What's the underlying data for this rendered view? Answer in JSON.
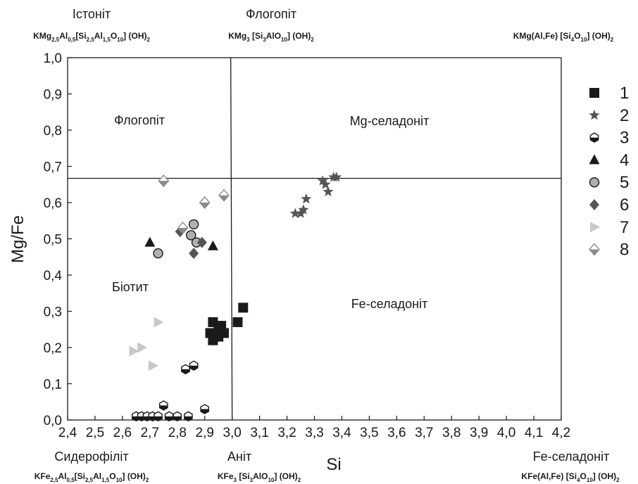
{
  "chart_data": {
    "type": "scatter",
    "xlabel": "Si",
    "ylabel": "Mg/Fe",
    "xlim": [
      2.4,
      4.2
    ],
    "ylim": [
      0.0,
      1.0
    ],
    "x_ticks": [
      "2,4",
      "2,5",
      "2,6",
      "2,7",
      "2,8",
      "2,9",
      "3,0",
      "3,1",
      "3,2",
      "3,3",
      "3,4",
      "3,5",
      "3,6",
      "3,7",
      "3,8",
      "3,9",
      "4,0",
      "4,1",
      "4,2"
    ],
    "y_ticks": [
      "0,0",
      "0,1",
      "0,2",
      "0,3",
      "0,4",
      "0,5",
      "0,6",
      "0,7",
      "0,8",
      "0,9",
      "1,0"
    ],
    "divider_lines": {
      "vertical_si": 3.0,
      "horizontal_mgfe": 0.667
    },
    "region_labels": {
      "top_left": "Флогопіт",
      "top_right": "Mg-селадоніт",
      "bottom_left": "Біотит",
      "bottom_right": "Fe-селадоніт"
    },
    "end_members": {
      "top_left": {
        "name": "Істоніт",
        "formula": "KMg2,5Al0,5[Si2,5Al1,5O10](OH)2"
      },
      "top_center": {
        "name": "Флогопіт",
        "formula": "KMg3[Si3AlO10](OH)2"
      },
      "top_right": {
        "name": "",
        "formula": "KMg(Al,Fe)[Si4O10](OH)2"
      },
      "bottom_left": {
        "name": "Сидерофіліт",
        "formula": "KFe2,5Al0,5[Si2,5Al1,5O10](OH)2"
      },
      "bottom_center": {
        "name": "Аніт",
        "formula": "KFe3[Si3AlO10](OH)2"
      },
      "bottom_right": {
        "name": "Fe-селадоніт",
        "formula": "KFe(Al,Fe)[Si4O10](OH)2"
      }
    },
    "legend_placement": "right",
    "series": [
      {
        "name": "1",
        "marker": "square",
        "color": "#1a1a1a",
        "points": [
          [
            2.93,
            0.27
          ],
          [
            2.95,
            0.25
          ],
          [
            2.96,
            0.26
          ],
          [
            2.92,
            0.24
          ],
          [
            2.93,
            0.22
          ],
          [
            2.97,
            0.24
          ],
          [
            2.95,
            0.23
          ],
          [
            3.02,
            0.27
          ],
          [
            3.04,
            0.31
          ]
        ]
      },
      {
        "name": "2",
        "marker": "star",
        "color": "#555555",
        "points": [
          [
            3.23,
            0.57
          ],
          [
            3.25,
            0.57
          ],
          [
            3.26,
            0.58
          ],
          [
            3.27,
            0.61
          ],
          [
            3.33,
            0.66
          ],
          [
            3.34,
            0.65
          ],
          [
            3.35,
            0.63
          ],
          [
            3.37,
            0.67
          ],
          [
            3.38,
            0.67
          ]
        ]
      },
      {
        "name": "3",
        "marker": "half-hexagon",
        "color": "#1a1a1a",
        "points": [
          [
            2.65,
            0.01
          ],
          [
            2.67,
            0.01
          ],
          [
            2.69,
            0.01
          ],
          [
            2.71,
            0.01
          ],
          [
            2.73,
            0.01
          ],
          [
            2.75,
            0.04
          ],
          [
            2.77,
            0.01
          ],
          [
            2.8,
            0.01
          ],
          [
            2.84,
            0.01
          ],
          [
            2.83,
            0.14
          ],
          [
            2.86,
            0.15
          ],
          [
            2.9,
            0.03
          ]
        ]
      },
      {
        "name": "4",
        "marker": "triangle-up",
        "color": "#1a1a1a",
        "points": [
          [
            2.7,
            0.49
          ],
          [
            2.93,
            0.48
          ]
        ]
      },
      {
        "name": "5",
        "marker": "circle",
        "color": "#b0b0b0",
        "points": [
          [
            2.73,
            0.46
          ],
          [
            2.86,
            0.54
          ],
          [
            2.85,
            0.51
          ],
          [
            2.87,
            0.49
          ]
        ]
      },
      {
        "name": "6",
        "marker": "diamond",
        "color": "#555555",
        "points": [
          [
            2.81,
            0.52
          ],
          [
            2.86,
            0.46
          ],
          [
            2.89,
            0.49
          ]
        ]
      },
      {
        "name": "7",
        "marker": "triangle-right",
        "color": "#c8c8c8",
        "points": [
          [
            2.73,
            0.27
          ],
          [
            2.64,
            0.19
          ],
          [
            2.67,
            0.2
          ],
          [
            2.71,
            0.15
          ]
        ]
      },
      {
        "name": "8",
        "marker": "diamond-split",
        "color": "#8a8a8a",
        "points": [
          [
            2.75,
            0.66
          ],
          [
            2.82,
            0.53
          ],
          [
            2.9,
            0.6
          ],
          [
            2.97,
            0.62
          ]
        ]
      }
    ]
  }
}
